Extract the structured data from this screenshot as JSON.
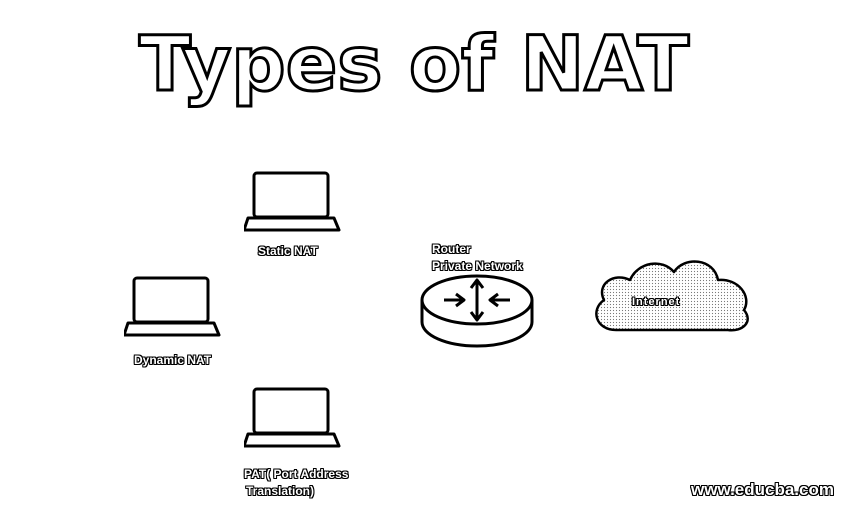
{
  "title": "Types of NAT",
  "laptops": [
    {
      "label": "Static NAT"
    },
    {
      "label": "Dynamic NAT"
    },
    {
      "label_line1": "PAT( Port Address",
      "label_line2": "Translation)"
    }
  ],
  "router": {
    "label_line1": "Router",
    "label_line2": "Private Network"
  },
  "cloud": {
    "label": "Internet"
  },
  "watermark": "www.educba.com"
}
